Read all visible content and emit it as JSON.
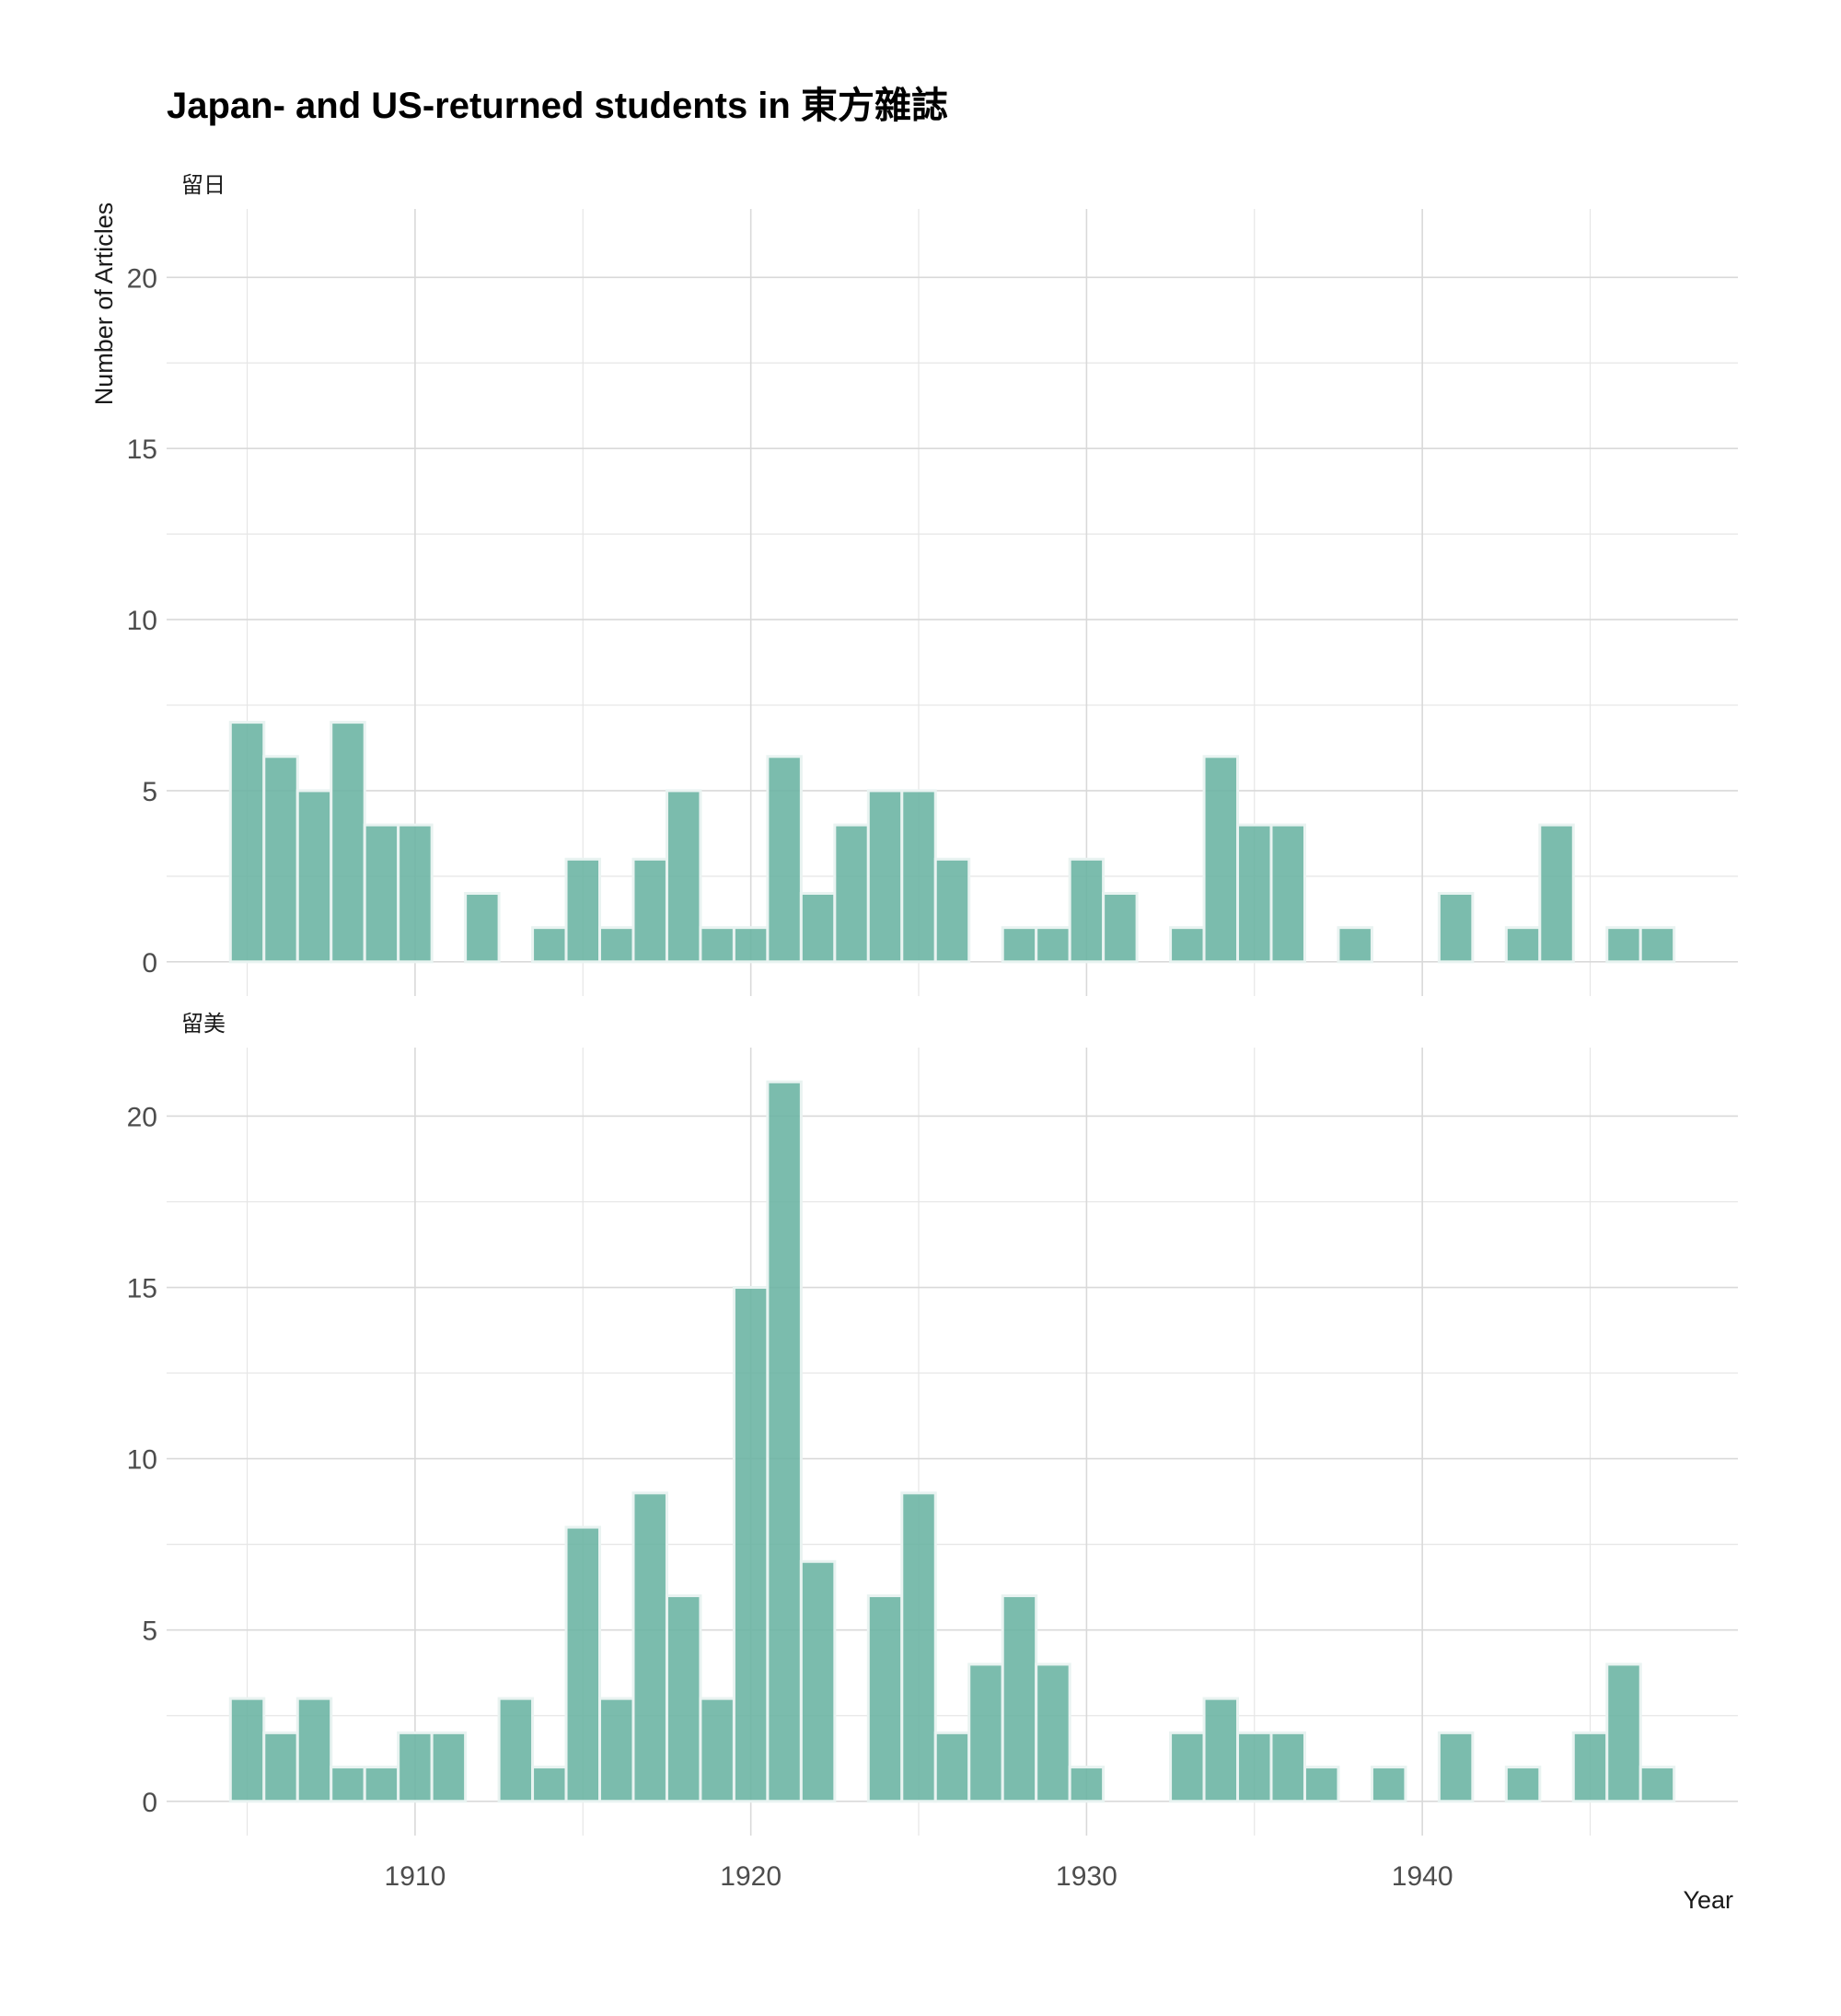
{
  "chart_data": {
    "type": "bar",
    "title": "Japan- and US-returned students in 東方雜誌",
    "xlabel": "Year",
    "ylabel": "Number of Articles",
    "xlim": [
      1902.6,
      1949.4
    ],
    "ylim": [
      -1,
      22
    ],
    "x_ticks": [
      1910,
      1920,
      1930,
      1940
    ],
    "y_ticks": [
      0,
      5,
      10,
      15,
      20
    ],
    "grid": true,
    "legend": "none",
    "bar_color": "#69b3a2",
    "bar_outline": "#e9f3f1",
    "panels": [
      {
        "label": "留日",
        "bins": [
          {
            "year": 1905,
            "count": 7
          },
          {
            "year": 1906,
            "count": 6
          },
          {
            "year": 1907,
            "count": 5
          },
          {
            "year": 1908,
            "count": 7
          },
          {
            "year": 1909,
            "count": 4
          },
          {
            "year": 1910,
            "count": 4
          },
          {
            "year": 1911,
            "count": 0
          },
          {
            "year": 1912,
            "count": 2
          },
          {
            "year": 1913,
            "count": 0
          },
          {
            "year": 1914,
            "count": 1
          },
          {
            "year": 1915,
            "count": 3
          },
          {
            "year": 1916,
            "count": 1
          },
          {
            "year": 1917,
            "count": 3
          },
          {
            "year": 1918,
            "count": 5
          },
          {
            "year": 1919,
            "count": 1
          },
          {
            "year": 1920,
            "count": 1
          },
          {
            "year": 1921,
            "count": 6
          },
          {
            "year": 1922,
            "count": 2
          },
          {
            "year": 1923,
            "count": 4
          },
          {
            "year": 1924,
            "count": 5
          },
          {
            "year": 1925,
            "count": 5
          },
          {
            "year": 1926,
            "count": 3
          },
          {
            "year": 1927,
            "count": 0
          },
          {
            "year": 1928,
            "count": 1
          },
          {
            "year": 1929,
            "count": 1
          },
          {
            "year": 1930,
            "count": 3
          },
          {
            "year": 1931,
            "count": 2
          },
          {
            "year": 1932,
            "count": 0
          },
          {
            "year": 1933,
            "count": 1
          },
          {
            "year": 1934,
            "count": 6
          },
          {
            "year": 1935,
            "count": 4
          },
          {
            "year": 1936,
            "count": 4
          },
          {
            "year": 1937,
            "count": 0
          },
          {
            "year": 1938,
            "count": 1
          },
          {
            "year": 1939,
            "count": 0
          },
          {
            "year": 1940,
            "count": 0
          },
          {
            "year": 1941,
            "count": 2
          },
          {
            "year": 1942,
            "count": 0
          },
          {
            "year": 1943,
            "count": 1
          },
          {
            "year": 1944,
            "count": 4
          },
          {
            "year": 1945,
            "count": 0
          },
          {
            "year": 1946,
            "count": 1
          },
          {
            "year": 1947,
            "count": 1
          }
        ]
      },
      {
        "label": "留美",
        "bins": [
          {
            "year": 1905,
            "count": 3
          },
          {
            "year": 1906,
            "count": 2
          },
          {
            "year": 1907,
            "count": 3
          },
          {
            "year": 1908,
            "count": 1
          },
          {
            "year": 1909,
            "count": 1
          },
          {
            "year": 1910,
            "count": 2
          },
          {
            "year": 1911,
            "count": 2
          },
          {
            "year": 1912,
            "count": 0
          },
          {
            "year": 1913,
            "count": 3
          },
          {
            "year": 1914,
            "count": 1
          },
          {
            "year": 1915,
            "count": 8
          },
          {
            "year": 1916,
            "count": 3
          },
          {
            "year": 1917,
            "count": 9
          },
          {
            "year": 1918,
            "count": 6
          },
          {
            "year": 1919,
            "count": 3
          },
          {
            "year": 1920,
            "count": 15
          },
          {
            "year": 1921,
            "count": 21
          },
          {
            "year": 1922,
            "count": 7
          },
          {
            "year": 1923,
            "count": 0
          },
          {
            "year": 1924,
            "count": 6
          },
          {
            "year": 1925,
            "count": 9
          },
          {
            "year": 1926,
            "count": 2
          },
          {
            "year": 1927,
            "count": 4
          },
          {
            "year": 1928,
            "count": 6
          },
          {
            "year": 1929,
            "count": 4
          },
          {
            "year": 1930,
            "count": 1
          },
          {
            "year": 1931,
            "count": 0
          },
          {
            "year": 1932,
            "count": 0
          },
          {
            "year": 1933,
            "count": 2
          },
          {
            "year": 1934,
            "count": 3
          },
          {
            "year": 1935,
            "count": 2
          },
          {
            "year": 1936,
            "count": 2
          },
          {
            "year": 1937,
            "count": 1
          },
          {
            "year": 1938,
            "count": 0
          },
          {
            "year": 1939,
            "count": 1
          },
          {
            "year": 1940,
            "count": 0
          },
          {
            "year": 1941,
            "count": 2
          },
          {
            "year": 1942,
            "count": 0
          },
          {
            "year": 1943,
            "count": 1
          },
          {
            "year": 1944,
            "count": 0
          },
          {
            "year": 1945,
            "count": 2
          },
          {
            "year": 1946,
            "count": 4
          },
          {
            "year": 1947,
            "count": 1
          }
        ]
      }
    ]
  }
}
